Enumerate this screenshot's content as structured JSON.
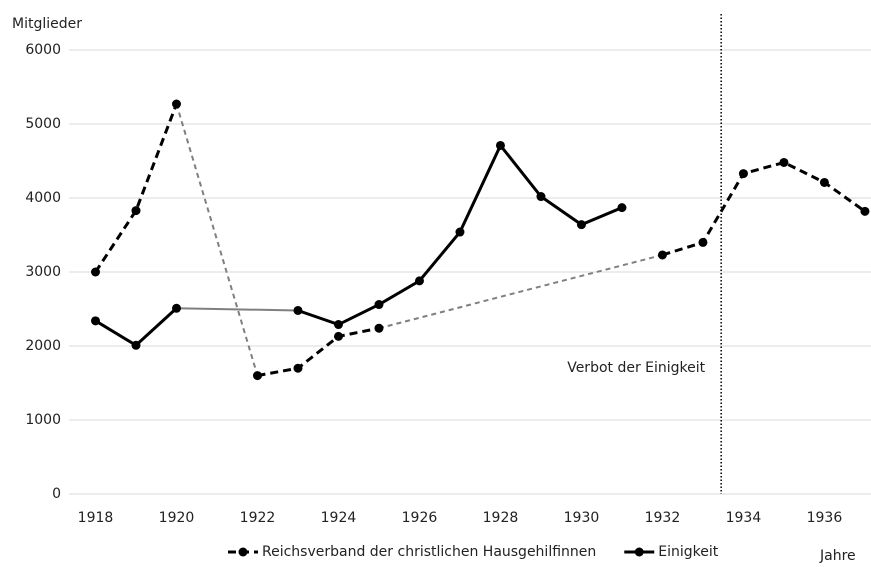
{
  "chart_data": {
    "type": "line",
    "y_label": "Mitglieder",
    "x_label": "Jahre",
    "x": [
      1918,
      1919,
      1920,
      1921,
      1922,
      1923,
      1924,
      1925,
      1926,
      1927,
      1928,
      1929,
      1930,
      1931,
      1932,
      1933,
      1934,
      1935,
      1936,
      1937
    ],
    "series": [
      {
        "name": "Reichsverband der christlichen Hausgehilfinnen",
        "color": "#000000",
        "linestyle": "dashed",
        "gap_color": "#7f7f7f",
        "values": [
          3000,
          3830,
          5270,
          null,
          1600,
          1700,
          2130,
          2240,
          null,
          null,
          null,
          null,
          null,
          null,
          3230,
          3400,
          4330,
          4480,
          4210,
          3820
        ]
      },
      {
        "name": "Einigkeit",
        "color": "#000000",
        "linestyle": "solid",
        "gap_color": "#7f7f7f",
        "values": [
          2340,
          2010,
          2510,
          null,
          null,
          2480,
          2290,
          2560,
          2880,
          3540,
          4710,
          4020,
          3640,
          3870,
          null,
          null,
          null,
          null,
          null,
          null
        ]
      }
    ],
    "annotation": {
      "text": "Verbot der Einigkeit",
      "x": 1933.45
    },
    "xlim": [
      1917,
      1937.15
    ],
    "xticks": [
      1918,
      1920,
      1922,
      1924,
      1926,
      1928,
      1930,
      1932,
      1934,
      1936
    ],
    "ylim": [
      0,
      6000
    ],
    "yticks": [
      0,
      1000,
      2000,
      3000,
      4000,
      5000,
      6000
    ],
    "grid": true,
    "legend": "bottom"
  }
}
